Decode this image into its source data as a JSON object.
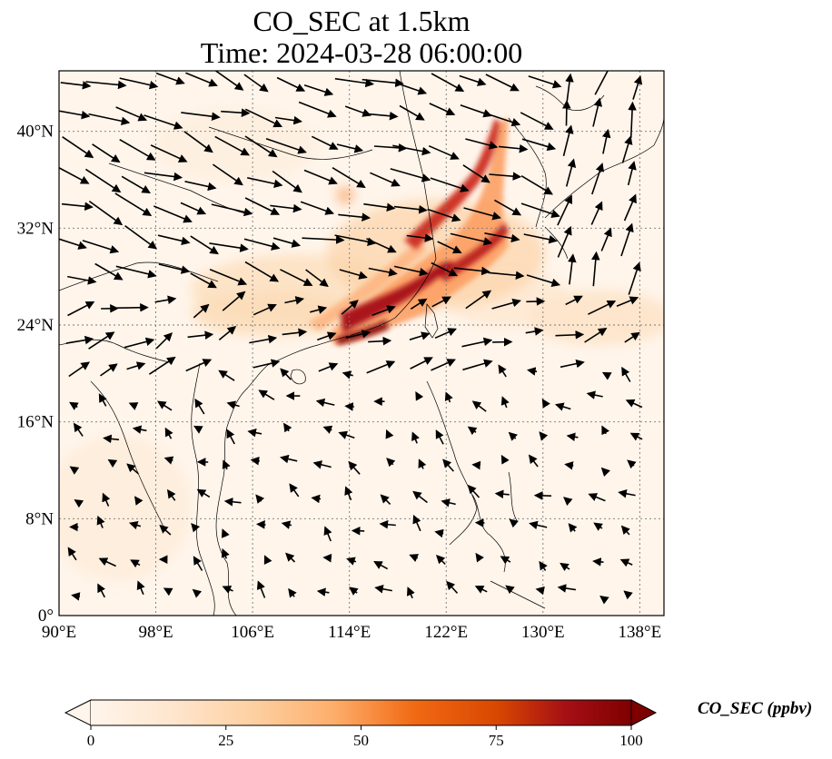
{
  "title": {
    "line1": "CO_SEC at 1.5km",
    "line2": "Time: 2024-03-28 06:00:00"
  },
  "map": {
    "lon_range": [
      90,
      140
    ],
    "lat_range": [
      0,
      45
    ],
    "lon_ticks": [
      "90°E",
      "98°E",
      "106°E",
      "114°E",
      "122°E",
      "130°E",
      "138°E"
    ],
    "lat_ticks": [
      "0°",
      "8°N",
      "16°N",
      "24°N",
      "32°N",
      "40°N"
    ],
    "lon_tick_values": [
      90,
      98,
      106,
      114,
      122,
      130,
      138
    ],
    "lat_tick_values": [
      0,
      8,
      16,
      24,
      32,
      40
    ],
    "gridlines": true,
    "background_color": "#fff5eb",
    "plume_colors": [
      "#fdd0a2",
      "#f16913",
      "#a50f15",
      "#7f0000"
    ],
    "wind_arrows": "black quiver vectors"
  },
  "colorbar": {
    "label": "CO_SEC (ppbv)",
    "ticks": [
      "0",
      "25",
      "50",
      "75",
      "100"
    ],
    "tick_values": [
      0,
      25,
      50,
      75,
      100
    ],
    "range": [
      0,
      100
    ],
    "colormap": "OrRd",
    "extend": "both"
  }
}
